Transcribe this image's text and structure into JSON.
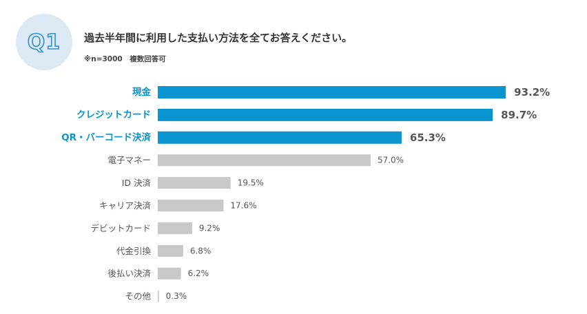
{
  "badge": {
    "label": "Q1"
  },
  "question": "過去半年間に利用した支払い方法を全てお答えください。",
  "note": "※n=3000　複数回答可",
  "colors": {
    "highlight": "#0a94d0",
    "normal": "#c8c8c8",
    "highlight_text": "#0a94d0",
    "normal_text": "#555555",
    "value_highlight": "#555555"
  },
  "chart_data": {
    "type": "bar",
    "orientation": "horizontal",
    "title": "過去半年間に利用した支払い方法を全てお答えください。",
    "categories": [
      "現金",
      "クレジットカード",
      "QR・バーコード決済",
      "電子マネー",
      "ID 決済",
      "キャリア決済",
      "デビットカード",
      "代金引換",
      "後払い決済",
      "その他"
    ],
    "values": [
      93.2,
      89.7,
      65.3,
      57.0,
      19.5,
      17.6,
      9.2,
      6.8,
      6.2,
      0.3
    ],
    "labels": [
      "93.2%",
      "89.7%",
      "65.3%",
      "57.0%",
      "19.5%",
      "17.6%",
      "9.2%",
      "6.8%",
      "6.2%",
      "0.3%"
    ],
    "highlighted": [
      true,
      true,
      true,
      false,
      false,
      false,
      false,
      false,
      false,
      false
    ],
    "unit": "%",
    "grid": false,
    "legend": "none"
  }
}
